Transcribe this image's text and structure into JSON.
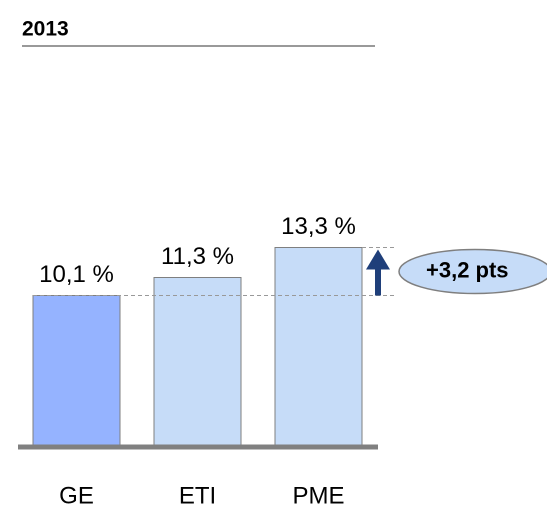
{
  "chart_data": {
    "type": "bar",
    "title": "2013",
    "categories": [
      "GE",
      "ETI",
      "PME"
    ],
    "values": [
      10.1,
      11.3,
      13.3
    ],
    "value_labels": [
      "10,1 %",
      "11,3 %",
      "13,3 %"
    ],
    "colors": [
      "#95b3ff",
      "#c6dcf8",
      "#c6dcf8"
    ],
    "annotation": "+3,2 pts"
  }
}
